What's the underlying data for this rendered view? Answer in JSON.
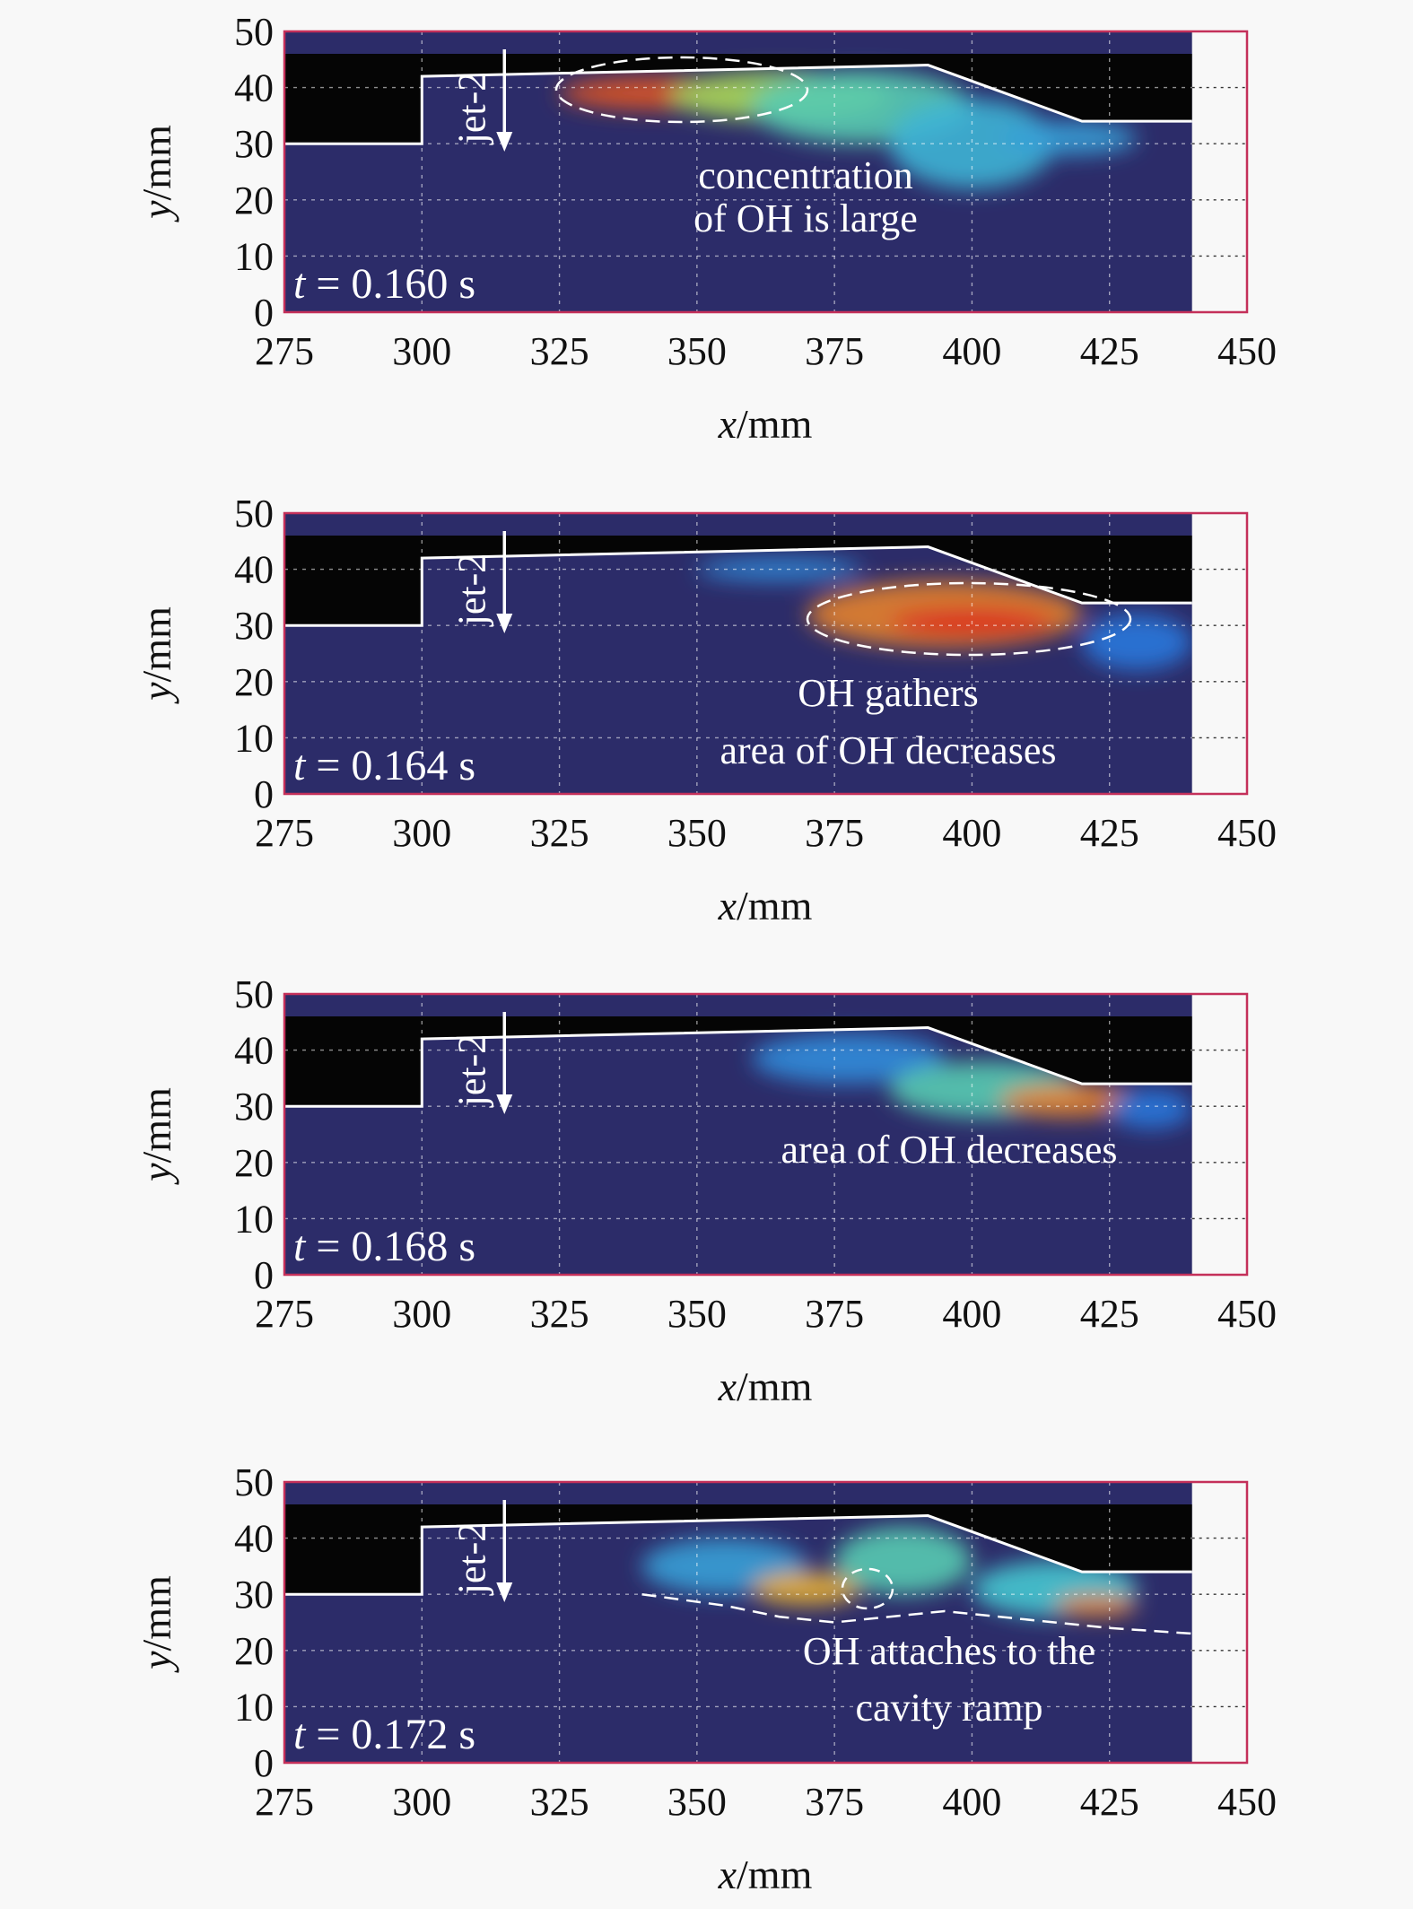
{
  "chart_data": [
    {
      "type": "heatmap",
      "time_label": "t = 0.160 s",
      "jet_label": "jet-2",
      "annotations": [
        "concentration",
        "of OH is large"
      ],
      "xlabel": "x/mm",
      "ylabel": "y/mm",
      "xlim": [
        275,
        450
      ],
      "ylim": [
        0,
        50
      ],
      "xticks": [
        275,
        300,
        325,
        350,
        375,
        400,
        425,
        450
      ],
      "yticks": [
        0,
        10,
        20,
        30,
        40,
        50
      ],
      "grid": true,
      "regions": [
        {
          "x": [
            325,
            360
          ],
          "y": [
            36,
            42
          ],
          "level": 0.95
        },
        {
          "x": [
            345,
            385
          ],
          "y": [
            34,
            43
          ],
          "level": 0.7
        },
        {
          "x": [
            360,
            400
          ],
          "y": [
            30,
            43
          ],
          "level": 0.55
        },
        {
          "x": [
            385,
            415
          ],
          "y": [
            22,
            38
          ],
          "level": 0.45
        },
        {
          "x": [
            405,
            430
          ],
          "y": [
            28,
            34
          ],
          "level": 0.4
        }
      ]
    },
    {
      "type": "heatmap",
      "time_label": "t = 0.164 s",
      "jet_label": "jet-2",
      "annotations": [
        "OH gathers",
        "area of OH decreases"
      ],
      "xlabel": "x/mm",
      "ylabel": "y/mm",
      "xlim": [
        275,
        450
      ],
      "ylim": [
        0,
        50
      ],
      "xticks": [
        275,
        300,
        325,
        350,
        375,
        400,
        425,
        450
      ],
      "yticks": [
        0,
        10,
        20,
        30,
        40,
        50
      ],
      "grid": true,
      "regions": [
        {
          "x": [
            350,
            380
          ],
          "y": [
            38,
            42
          ],
          "level": 0.35
        },
        {
          "x": [
            370,
            420
          ],
          "y": [
            26,
            38
          ],
          "level": 0.9
        },
        {
          "x": [
            385,
            415
          ],
          "y": [
            28,
            33
          ],
          "level": 1.0
        },
        {
          "x": [
            420,
            440
          ],
          "y": [
            22,
            32
          ],
          "level": 0.3
        }
      ]
    },
    {
      "type": "heatmap",
      "time_label": "t = 0.168 s",
      "jet_label": "jet-2",
      "annotations": [
        "area of OH decreases"
      ],
      "xlabel": "x/mm",
      "ylabel": "y/mm",
      "xlim": [
        275,
        450
      ],
      "ylim": [
        0,
        50
      ],
      "xticks": [
        275,
        300,
        325,
        350,
        375,
        400,
        425,
        450
      ],
      "yticks": [
        0,
        10,
        20,
        30,
        40,
        50
      ],
      "grid": true,
      "regions": [
        {
          "x": [
            360,
            395
          ],
          "y": [
            34,
            43
          ],
          "level": 0.35
        },
        {
          "x": [
            385,
            420
          ],
          "y": [
            28,
            38
          ],
          "level": 0.55
        },
        {
          "x": [
            405,
            430
          ],
          "y": [
            28,
            34
          ],
          "level": 0.9
        },
        {
          "x": [
            425,
            440
          ],
          "y": [
            26,
            33
          ],
          "level": 0.3
        }
      ]
    },
    {
      "type": "heatmap",
      "time_label": "t = 0.172 s",
      "jet_label": "jet-2",
      "annotations": [
        "OH attaches to the",
        "cavity ramp"
      ],
      "xlabel": "x/mm",
      "ylabel": "y/mm",
      "xlim": [
        275,
        450
      ],
      "ylim": [
        0,
        50
      ],
      "xticks": [
        275,
        300,
        325,
        350,
        375,
        400,
        425,
        450
      ],
      "yticks": [
        0,
        10,
        20,
        30,
        40,
        50
      ],
      "grid": true,
      "regions": [
        {
          "x": [
            340,
            370
          ],
          "y": [
            30,
            40
          ],
          "level": 0.4
        },
        {
          "x": [
            360,
            380
          ],
          "y": [
            28,
            34
          ],
          "level": 0.85
        },
        {
          "x": [
            375,
            400
          ],
          "y": [
            30,
            42
          ],
          "level": 0.55
        },
        {
          "x": [
            400,
            430
          ],
          "y": [
            26,
            36
          ],
          "level": 0.5
        },
        {
          "x": [
            415,
            430
          ],
          "y": [
            26,
            30
          ],
          "level": 0.9
        }
      ]
    }
  ]
}
